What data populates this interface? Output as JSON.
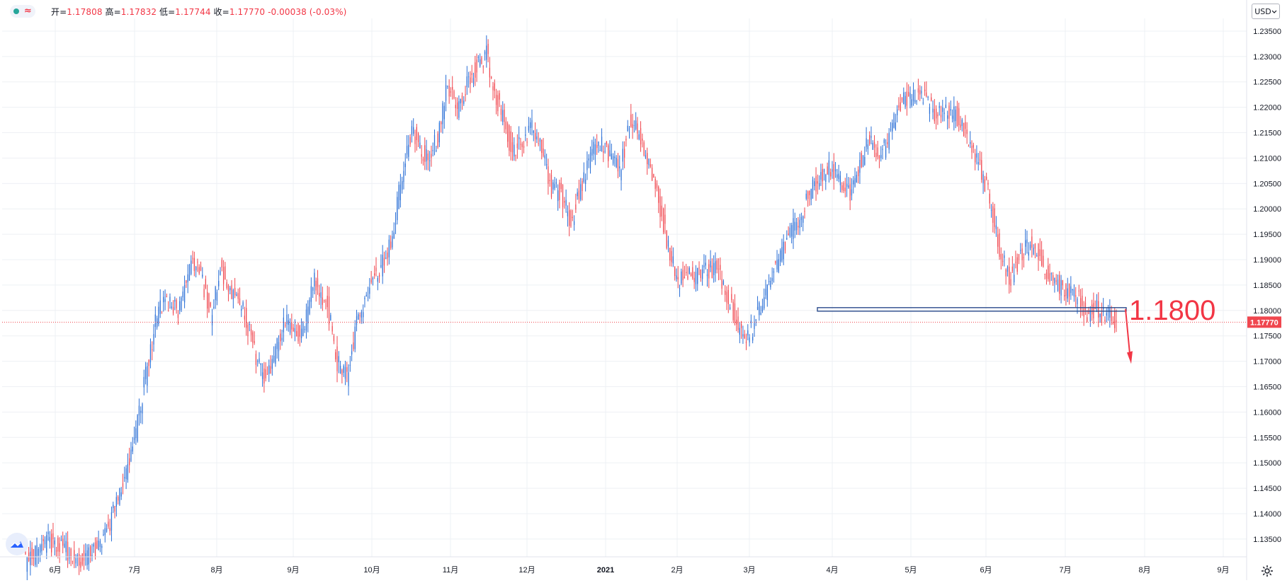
{
  "header": {
    "ohlc": {
      "open_label": "开=",
      "open": "1.17808",
      "high_label": "高=",
      "high": "1.17832",
      "low_label": "低=",
      "low": "1.17744",
      "close_label": "收=",
      "close": "1.17770",
      "change": "-0.00038",
      "change_pct": "(-0.03%)"
    },
    "approx_symbol": "≈",
    "currency": "USD"
  },
  "colors": {
    "up": "#2a6fd6",
    "down": "#f0474f",
    "grid": "#eef0f4",
    "price_line": "#f0474f",
    "annotation": "#f23645",
    "level_line": "#2b4c8c"
  },
  "icons": [
    "tradingview-logo-icon",
    "gear-icon",
    "chevron-down-icon"
  ],
  "chart_data": {
    "type": "candlestick",
    "ylim": [
      1.1315,
      1.2375
    ],
    "grid": true,
    "y_axis_ticks": [
      "1.23500",
      "1.23000",
      "1.22500",
      "1.22000",
      "1.21500",
      "1.21000",
      "1.20500",
      "1.20000",
      "1.19500",
      "1.19000",
      "1.18500",
      "1.18000",
      "1.17500",
      "1.17000",
      "1.16500",
      "1.16000",
      "1.15500",
      "1.15000",
      "1.14500",
      "1.14000",
      "1.13500"
    ],
    "x_axis_ticks": [
      "6月",
      "7月",
      "8月",
      "9月",
      "10月",
      "11月",
      "12月",
      "2021",
      "2月",
      "3月",
      "4月",
      "5月",
      "6月",
      "7月",
      "8月",
      "9月"
    ],
    "current_price": 1.1777,
    "current_price_label": "1.17770",
    "level": 1.18,
    "level_label": "1.1800",
    "trend_anchors": [
      [
        0,
        1.1305
      ],
      [
        14,
        1.1345
      ],
      [
        35,
        1.131
      ],
      [
        44,
        1.133
      ],
      [
        52,
        1.1385
      ],
      [
        60,
        1.1455
      ],
      [
        68,
        1.156
      ],
      [
        75,
        1.169
      ],
      [
        82,
        1.1805
      ],
      [
        88,
        1.1815
      ],
      [
        94,
        1.1795
      ],
      [
        102,
        1.189
      ],
      [
        108,
        1.187
      ],
      [
        114,
        1.179
      ],
      [
        120,
        1.188
      ],
      [
        128,
        1.183
      ],
      [
        134,
        1.1805
      ],
      [
        140,
        1.173
      ],
      [
        146,
        1.167
      ],
      [
        152,
        1.17
      ],
      [
        160,
        1.178
      ],
      [
        170,
        1.1745
      ],
      [
        178,
        1.186
      ],
      [
        186,
        1.181
      ],
      [
        192,
        1.17
      ],
      [
        198,
        1.1665
      ],
      [
        204,
        1.178
      ],
      [
        212,
        1.185
      ],
      [
        220,
        1.189
      ],
      [
        226,
        1.195
      ],
      [
        232,
        1.207
      ],
      [
        238,
        1.216
      ],
      [
        246,
        1.21
      ],
      [
        254,
        1.214
      ],
      [
        260,
        1.225
      ],
      [
        266,
        1.2195
      ],
      [
        272,
        1.225
      ],
      [
        280,
        1.229
      ],
      [
        284,
        1.2305
      ],
      [
        288,
        1.224
      ],
      [
        294,
        1.218
      ],
      [
        300,
        1.211
      ],
      [
        306,
        1.213
      ],
      [
        312,
        1.216
      ],
      [
        318,
        1.212
      ],
      [
        324,
        1.204
      ],
      [
        330,
        1.203
      ],
      [
        336,
        1.197
      ],
      [
        342,
        1.204
      ],
      [
        348,
        1.211
      ],
      [
        354,
        1.213
      ],
      [
        360,
        1.211
      ],
      [
        366,
        1.207
      ],
      [
        372,
        1.217
      ],
      [
        378,
        1.215
      ],
      [
        384,
        1.208
      ],
      [
        390,
        1.202
      ],
      [
        396,
        1.192
      ],
      [
        402,
        1.186
      ],
      [
        408,
        1.187
      ],
      [
        414,
        1.187
      ],
      [
        420,
        1.188
      ],
      [
        426,
        1.188
      ],
      [
        432,
        1.183
      ],
      [
        438,
        1.178
      ],
      [
        442,
        1.174
      ],
      [
        448,
        1.1765
      ],
      [
        454,
        1.182
      ],
      [
        460,
        1.188
      ],
      [
        466,
        1.191
      ],
      [
        472,
        1.196
      ],
      [
        478,
        1.199
      ],
      [
        484,
        1.204
      ],
      [
        490,
        1.206
      ],
      [
        496,
        1.208
      ],
      [
        502,
        1.205
      ],
      [
        508,
        1.203
      ],
      [
        514,
        1.209
      ],
      [
        520,
        1.214
      ],
      [
        526,
        1.2095
      ],
      [
        532,
        1.2145
      ],
      [
        538,
        1.22
      ],
      [
        544,
        1.222
      ],
      [
        550,
        1.2235
      ],
      [
        556,
        1.2205
      ],
      [
        562,
        1.2185
      ],
      [
        568,
        1.2195
      ],
      [
        574,
        1.218
      ],
      [
        580,
        1.214
      ],
      [
        586,
        1.21
      ],
      [
        592,
        1.204
      ],
      [
        596,
        1.199
      ],
      [
        600,
        1.192
      ],
      [
        606,
        1.186
      ],
      [
        612,
        1.19
      ],
      [
        618,
        1.193
      ],
      [
        624,
        1.191
      ],
      [
        630,
        1.187
      ],
      [
        636,
        1.185
      ],
      [
        642,
        1.184
      ],
      [
        648,
        1.183
      ],
      [
        654,
        1.179
      ],
      [
        660,
        1.18
      ],
      [
        666,
        1.179
      ],
      [
        672,
        1.1777
      ]
    ]
  }
}
